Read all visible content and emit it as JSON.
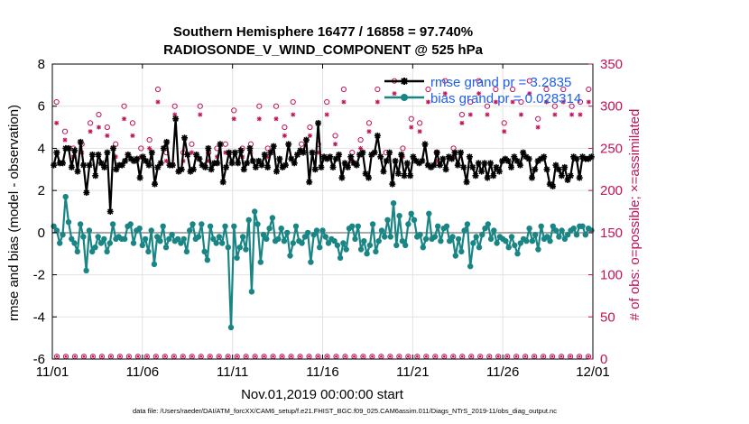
{
  "chart_data": {
    "type": "line",
    "title": "Southern Hemisphere 16477 / 16858 = 97.740%",
    "subtitle": "RADIOSONDE_V_WIND_COMPONENT @ 525 hPa",
    "xlabel": "Nov.01,2019 00:00:00 start",
    "ylabel": "rmse and bias (model - observation)",
    "ylabel_right": "# of obs: o=possible; ×=assimilated",
    "x_ticks": [
      "11/01",
      "11/06",
      "11/11",
      "11/16",
      "11/21",
      "11/26",
      "12/01"
    ],
    "y_ticks": [
      "-6",
      "-4",
      "-2",
      "0",
      "2",
      "4",
      "6",
      "8"
    ],
    "y_ticks_right": [
      "0",
      "50",
      "100",
      "150",
      "200",
      "250",
      "300",
      "350"
    ],
    "xlim": [
      0,
      30
    ],
    "ylim": [
      -6,
      8
    ],
    "ylim_right": [
      0,
      350
    ],
    "grid": true,
    "legend_position": "top-right",
    "footnote": "data file: /Users/raeder/DAI/ATM_forcXX/CAM6_setup/f.e21.FHIST_BGC.f09_025.CAM6assim.011/Diags_NTrS_2019-11/obs_diag_output.nc",
    "series": [
      {
        "name": "rmse grand pr = 3.2835",
        "color": "#000000",
        "marker": "star",
        "values": [
          3.2,
          3.8,
          3.3,
          3.3,
          4.0,
          4.0,
          3.1,
          3.9,
          2.9,
          4.3,
          3.2,
          1.9,
          3.2,
          3.7,
          2.7,
          3.7,
          3.3,
          3.1,
          3.8,
          1.0,
          4.0,
          3.0,
          3.2,
          3.2,
          3.4,
          3.7,
          3.5,
          3.4,
          3.5,
          2.6,
          3.6,
          3.4,
          3.2,
          3.8,
          2.3,
          3.1,
          3.3,
          4.0,
          4.3,
          3.2,
          3.2,
          5.4,
          2.9,
          3.0,
          4.5,
          3.7,
          2.9,
          3.0,
          3.7,
          3.5,
          3.2,
          3.1,
          4.0,
          3.0,
          3.3,
          3.3,
          4.2,
          2.4,
          3.1,
          3.8,
          3.3,
          3.8,
          3.3,
          3.9,
          3.0,
          3.3,
          4.0,
          3.4,
          3.1,
          3.4,
          3.2,
          3.7,
          3.1,
          3.8,
          4.1,
          2.9,
          3.5,
          3.1,
          3.2,
          4.2,
          3.5,
          3.3,
          3.7,
          3.9,
          3.8,
          4.4,
          2.4,
          3.8,
          3.0,
          5.2,
          3.1,
          3.6,
          3.5,
          3.6,
          3.1,
          3.5,
          3.7,
          2.6,
          3.3,
          3.1,
          3.6,
          3.3,
          3.2,
          3.7,
          3.8,
          2.8,
          2.6,
          3.7,
          3.8,
          4.6,
          3.6,
          2.9,
          3.4,
          3.8,
          2.3,
          3.4,
          2.8,
          3.7,
          2.7,
          3.3,
          2.7,
          3.6,
          3.4,
          3.3,
          3.4,
          4.2,
          3.2,
          3.1,
          3.2,
          3.8,
          3.2,
          3.5,
          3.0,
          3.6,
          3.5,
          3.8,
          3.2,
          3.8,
          3.1,
          2.4,
          3.6,
          3.1,
          2.7,
          3.3,
          2.9,
          3.3,
          2.6,
          3.3,
          2.7,
          3.1,
          2.9,
          3.4,
          3.5,
          3.4,
          3.1,
          3.6,
          3.4,
          3.2,
          3.8,
          3.6,
          3.5,
          2.6,
          3.0,
          3.4,
          3.5,
          3.6,
          3.0,
          2.3,
          2.2,
          3.2,
          3.0,
          2.7,
          3.1,
          2.5,
          2.7,
          3.6,
          3.5,
          2.6,
          3.6,
          3.5,
          3.5,
          3.6
        ]
      },
      {
        "name": "bias grand pr = 0.028314",
        "color": "#1a8585",
        "marker": "dot",
        "values": [
          0.3,
          0.1,
          -0.5,
          -0.1,
          1.7,
          0.5,
          -0.3,
          -0.5,
          -0.9,
          0.4,
          -0.2,
          -1.8,
          0.1,
          -0.9,
          -0.7,
          -0.2,
          -0.5,
          -0.3,
          -0.9,
          -0.5,
          0.4,
          -0.3,
          -0.2,
          -0.3,
          -0.3,
          0.3,
          0.4,
          -0.5,
          0.1,
          0.2,
          -0.6,
          -0.3,
          -0.9,
          0.1,
          -1.5,
          -0.2,
          -0.4,
          0.3,
          -0.7,
          -0.3,
          -0.1,
          -0.4,
          -0.3,
          -0.5,
          -0.3,
          -0.9,
          0.1,
          0.4,
          -0.3,
          -0.2,
          0.4,
          -0.9,
          -1.3,
          0.3,
          -0.3,
          -0.5,
          -0.2,
          -0.5,
          0.3,
          -0.7,
          -4.5,
          0.3,
          -1.2,
          -0.7,
          -0.2,
          -0.8,
          0.6,
          -2.8,
          1.0,
          0.4,
          -1.4,
          -0.1,
          -0.3,
          0.2,
          0.7,
          -0.4,
          -0.3,
          0.2,
          -0.4,
          0.0,
          -1.1,
          -0.5,
          0.3,
          -0.4,
          -0.5,
          -0.2,
          0.0,
          -1.4,
          -0.1,
          0.1,
          -0.7,
          0.1,
          -0.2,
          -0.5,
          -0.3,
          -0.4,
          -0.6,
          -1.2,
          -0.5,
          -0.8,
          0.2,
          0.3,
          -0.3,
          0.3,
          -0.8,
          -0.4,
          -1.0,
          -0.6,
          0.4,
          -0.9,
          -0.4,
          0.1,
          -0.2,
          0.6,
          -0.2,
          1.4,
          -0.6,
          0.8,
          -0.4,
          -0.6,
          0.4,
          0.9,
          0.6,
          -0.2,
          -0.1,
          -0.7,
          -0.3,
          0.9,
          -0.3,
          -0.2,
          0.3,
          -0.4,
          0.2,
          0.3,
          -0.4,
          -0.2,
          -1.1,
          -0.3,
          -0.9,
          0.1,
          0.4,
          -1.6,
          -0.5,
          -0.2,
          -0.7,
          -0.1,
          0.2,
          0.4,
          -0.3,
          0.1,
          -0.5,
          -0.2,
          -0.3,
          -0.4,
          -0.7,
          -0.2,
          -0.6,
          -1.0,
          -0.5,
          -0.3,
          -0.4,
          0.2,
          -0.4,
          -0.1,
          -0.8,
          0.3,
          -0.3,
          -0.2,
          -0.4,
          0.3,
          0.1,
          -0.2,
          0.1,
          -0.3,
          -0.1,
          0.1,
          0.2,
          -0.1,
          0.3,
          0.3,
          -0.1,
          0.2,
          0.1
        ]
      }
    ],
    "obs_possible": [
      305,
      270,
      250,
      255,
      280,
      290,
      275,
      255,
      300,
      280,
      250,
      260,
      320,
      245,
      300,
      245,
      255,
      300,
      245,
      250,
      255,
      295,
      250,
      255,
      300,
      250,
      300,
      275,
      305,
      255,
      275,
      255,
      305,
      265,
      320,
      245,
      260,
      280,
      320,
      245,
      330,
      250,
      285,
      280,
      320,
      245,
      330,
      250,
      290,
      305,
      330,
      300,
      320,
      280,
      320,
      305,
      330,
      285,
      320,
      300,
      320,
      300,
      305,
      320
    ],
    "obs_assimilated": [
      280,
      260,
      240,
      245,
      270,
      275,
      265,
      240,
      285,
      265,
      240,
      250,
      305,
      235,
      290,
      235,
      245,
      290,
      235,
      240,
      245,
      285,
      240,
      245,
      285,
      240,
      285,
      265,
      290,
      245,
      265,
      245,
      290,
      255,
      305,
      235,
      250,
      270,
      305,
      235,
      315,
      240,
      275,
      270,
      305,
      235,
      315,
      240,
      280,
      290,
      315,
      290,
      305,
      270,
      305,
      290,
      315,
      275,
      305,
      290,
      305,
      290,
      290,
      305
    ]
  }
}
